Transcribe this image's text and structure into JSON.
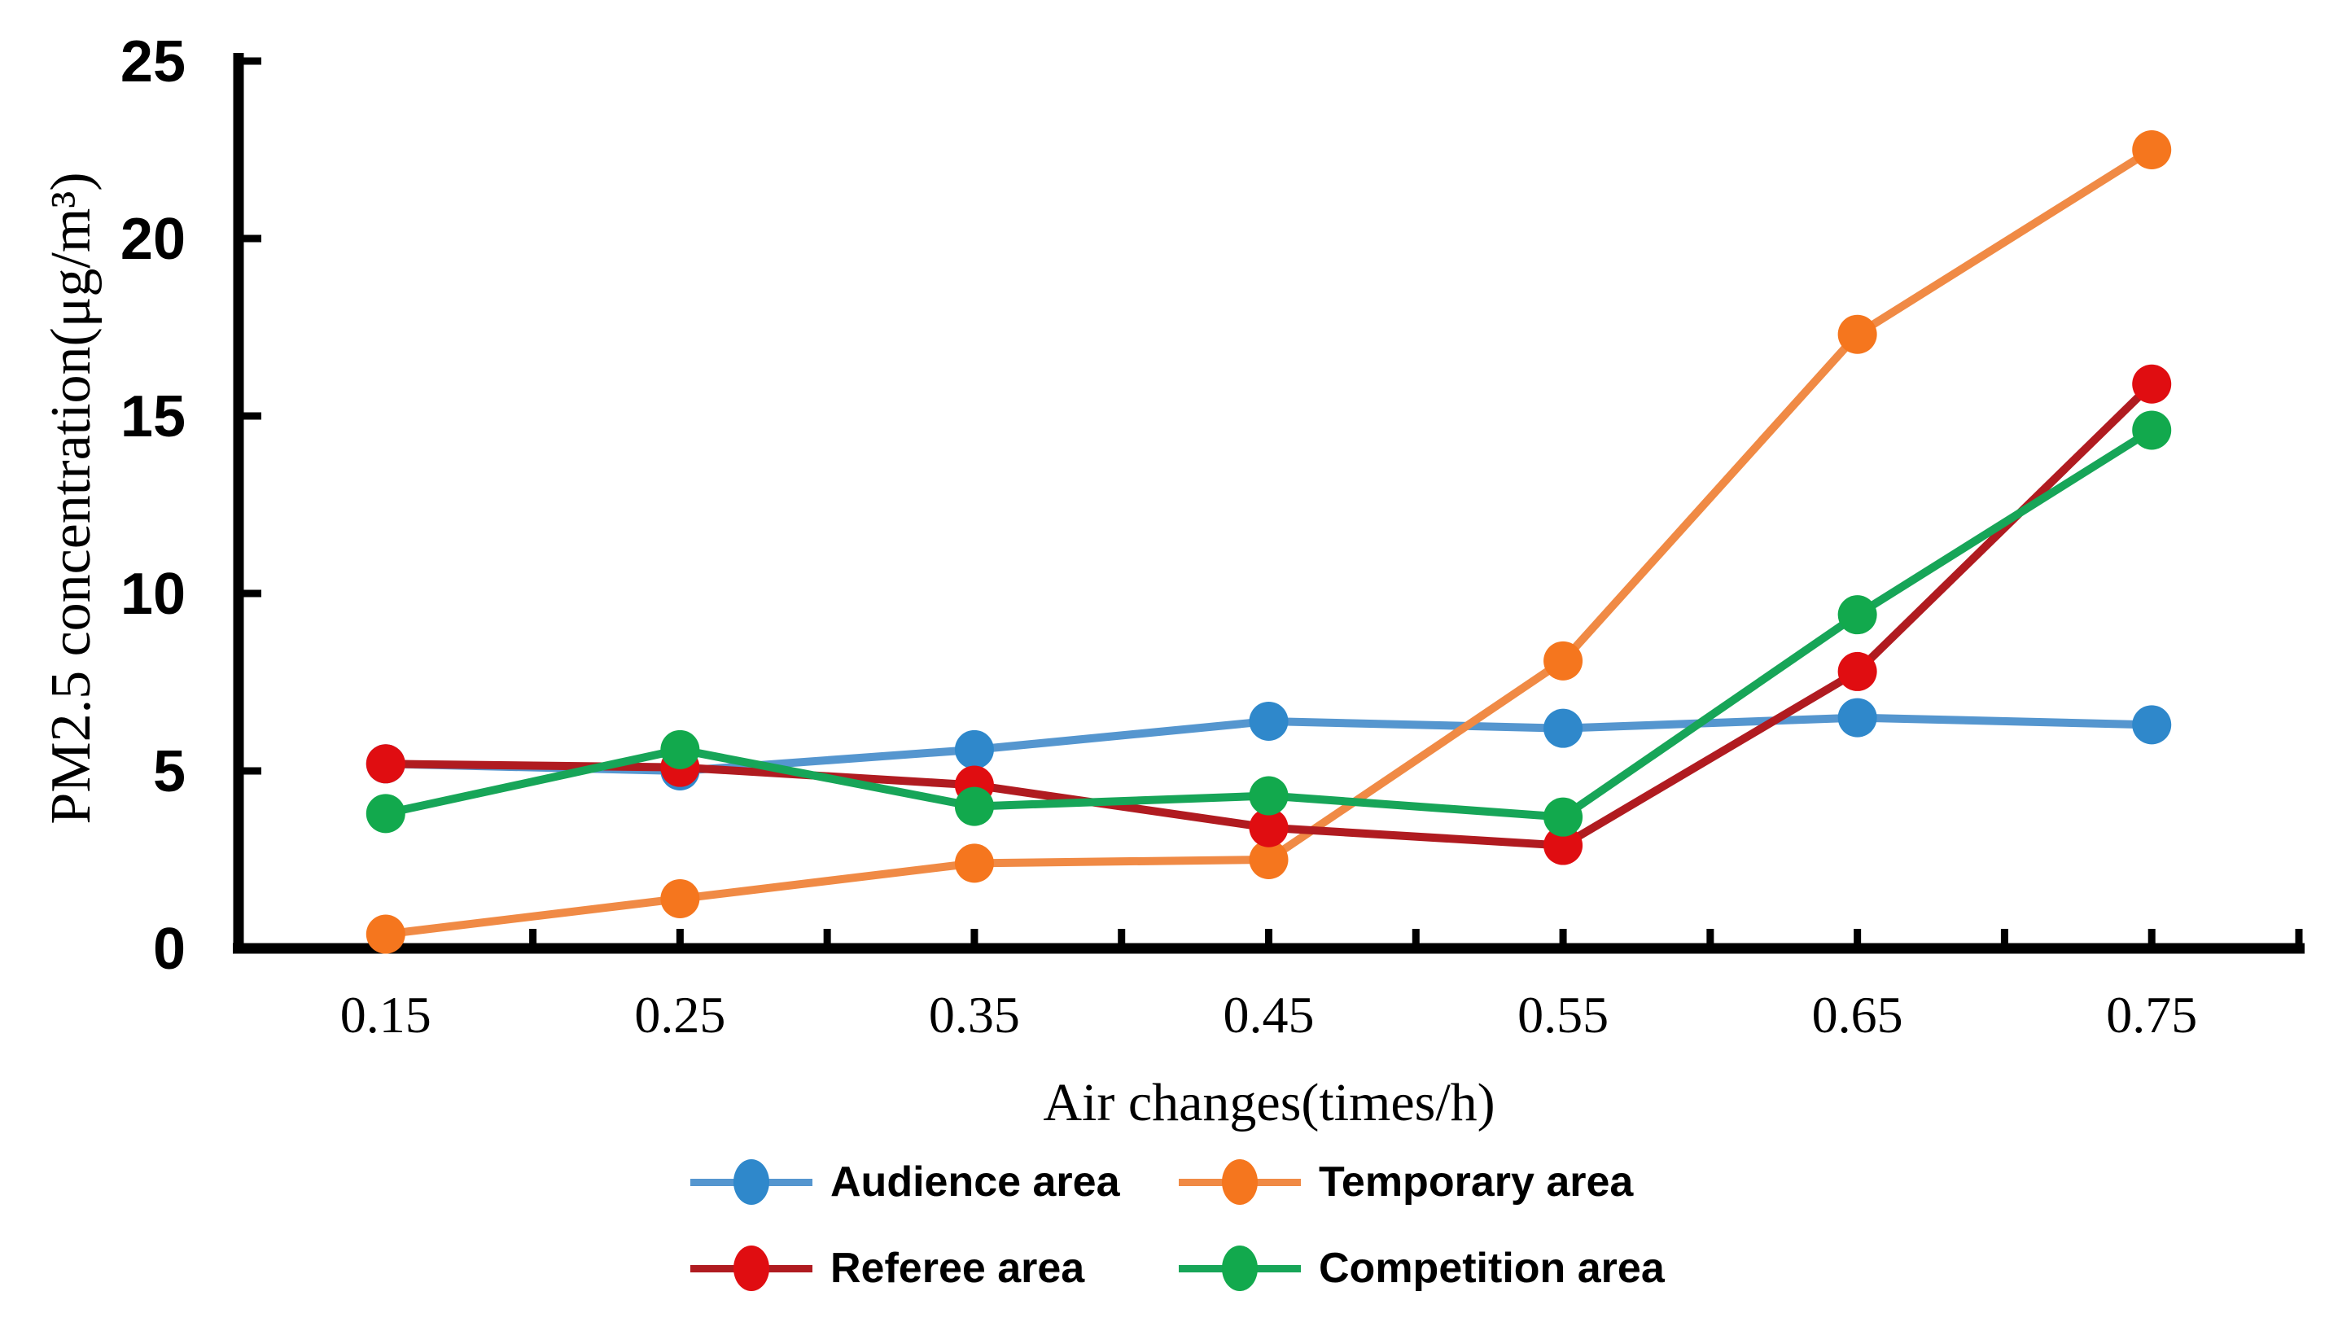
{
  "chart_data": {
    "type": "line",
    "title": "",
    "xlabel": "Air changes(times/h)",
    "ylabel": "PM2.5 concentration(μg/m³)",
    "x": [
      0.15,
      0.25,
      0.35,
      0.45,
      0.55,
      0.65,
      0.75
    ],
    "x_tick_labels": [
      "0.15",
      "0.25",
      "0.35",
      "0.45",
      "0.55",
      "0.65",
      "0.75"
    ],
    "x_minor_ticks": [
      0.15,
      0.2,
      0.25,
      0.3,
      0.35,
      0.4,
      0.45,
      0.5,
      0.55,
      0.6,
      0.65,
      0.7,
      0.75,
      0.8
    ],
    "y_tick_values": [
      5,
      10,
      15,
      20,
      25
    ],
    "y_tick_labels_all": [
      "0",
      "5",
      "10",
      "15",
      "20",
      "25"
    ],
    "y_zero_label": "0",
    "xlim": [
      0.1,
      0.8
    ],
    "ylim": [
      0,
      25
    ],
    "grid": false,
    "legend_position": "bottom",
    "axis_color": "#000000",
    "series": [
      {
        "name": "Audience area",
        "line_color": "#5596CF",
        "marker_color": "#2F88CB",
        "values": [
          5.2,
          5.0,
          5.6,
          6.4,
          6.2,
          6.5,
          6.3
        ]
      },
      {
        "name": "Temporary area",
        "line_color": "#F08A45",
        "marker_color": "#F5761E",
        "values": [
          0.4,
          1.4,
          2.4,
          2.5,
          8.1,
          17.3,
          22.5
        ]
      },
      {
        "name": "Referee area",
        "line_color": "#B01B20",
        "marker_color": "#E00D11",
        "values": [
          5.2,
          5.1,
          4.6,
          3.4,
          2.9,
          7.8,
          15.9
        ]
      },
      {
        "name": "Competition area",
        "line_color": "#17A558",
        "marker_color": "#12A94D",
        "values": [
          3.8,
          5.6,
          4.0,
          4.3,
          3.7,
          9.4,
          14.6
        ]
      }
    ]
  }
}
